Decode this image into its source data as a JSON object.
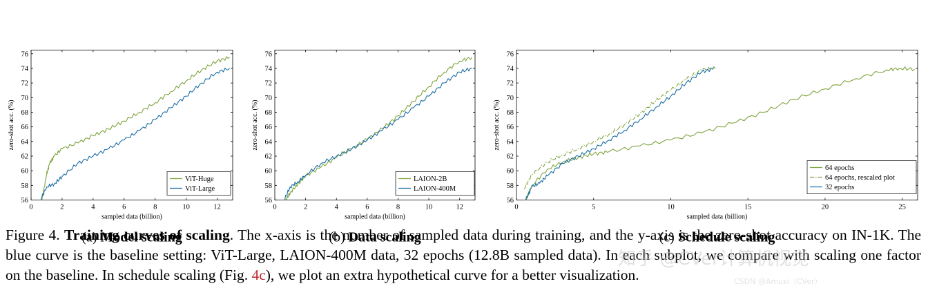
{
  "colors": {
    "green": "#7ea33e",
    "blue": "#1c6ea4",
    "caption_ref": "#c0282e"
  },
  "charts": [
    {
      "id": "a",
      "subcaption_prefix": "(a)",
      "subcaption_title": "Model scaling",
      "chart_data": {
        "type": "line",
        "xlabel": "sampled data (billion)",
        "ylabel": "zero-shot acc. (%)",
        "xlim": [
          0,
          13
        ],
        "ylim": [
          56,
          76.5
        ],
        "xticks": [
          0,
          2,
          4,
          6,
          8,
          10,
          12
        ],
        "yticks": [
          56,
          58,
          60,
          62,
          64,
          66,
          68,
          70,
          72,
          74,
          76
        ],
        "legend_position": "lower-right",
        "series": [
          {
            "name": "ViT-Huge",
            "color": "green",
            "style": "solid",
            "x": [
              0.7,
              1.0,
              1.2,
              1.5,
              2.0,
              3.0,
              4.0,
              5.0,
              6.0,
              7.0,
              8.0,
              9.0,
              10.0,
              11.0,
              12.0,
              12.8
            ],
            "y": [
              56.0,
              59.5,
              61.0,
              62.0,
              63.0,
              63.8,
              64.8,
              65.7,
              66.8,
              68.0,
              69.3,
              70.8,
              72.3,
              73.8,
              75.0,
              75.5
            ]
          },
          {
            "name": "ViT-Large",
            "color": "blue",
            "style": "solid",
            "x": [
              0.6,
              1.0,
              1.5,
              2.0,
              3.0,
              4.0,
              5.0,
              6.0,
              7.0,
              8.0,
              9.0,
              10.0,
              11.0,
              12.0,
              12.8
            ],
            "y": [
              56.0,
              57.8,
              58.2,
              59.2,
              61.0,
              62.0,
              63.0,
              64.2,
              65.5,
              67.0,
              68.6,
              70.2,
              72.0,
              73.5,
              74.0
            ]
          }
        ]
      }
    },
    {
      "id": "b",
      "subcaption_prefix": "(b)",
      "subcaption_title": "Data scaling",
      "chart_data": {
        "type": "line",
        "xlabel": "sampled data (billion)",
        "ylabel": "zero-shot acc. (%)",
        "xlim": [
          0,
          13
        ],
        "ylim": [
          56,
          76.5
        ],
        "xticks": [
          0,
          2,
          4,
          6,
          8,
          10,
          12
        ],
        "yticks": [
          56,
          58,
          60,
          62,
          64,
          66,
          68,
          70,
          72,
          74,
          76
        ],
        "legend_position": "lower-right",
        "series": [
          {
            "name": "LAION-2B",
            "color": "green",
            "style": "solid",
            "x": [
              0.7,
              1.0,
              1.5,
              2.0,
              3.0,
              4.0,
              5.0,
              6.0,
              7.0,
              8.0,
              9.0,
              10.0,
              11.0,
              12.0,
              12.8
            ],
            "y": [
              56.0,
              57.0,
              58.2,
              59.3,
              60.5,
              61.8,
              63.0,
              64.3,
              65.8,
              67.5,
              69.5,
              71.5,
              73.5,
              75.0,
              75.5
            ]
          },
          {
            "name": "LAION-400M",
            "color": "blue",
            "style": "solid",
            "x": [
              0.6,
              1.0,
              1.5,
              2.0,
              3.0,
              4.0,
              5.0,
              6.0,
              7.0,
              8.0,
              9.0,
              10.0,
              11.0,
              12.0,
              12.8
            ],
            "y": [
              56.0,
              57.8,
              58.5,
              59.4,
              61.0,
              62.0,
              63.0,
              64.2,
              65.6,
              67.0,
              68.6,
              70.2,
              72.0,
              73.5,
              74.0
            ]
          }
        ]
      }
    },
    {
      "id": "c",
      "subcaption_prefix": "(c)",
      "subcaption_title": "Schedule scaling",
      "chart_data": {
        "type": "line",
        "xlabel": "sampled data (billion)",
        "ylabel": "zero-shot acc. (%)",
        "xlim": [
          0,
          26
        ],
        "ylim": [
          56,
          76.5
        ],
        "xticks": [
          0,
          5,
          10,
          15,
          20,
          25
        ],
        "yticks": [
          56,
          58,
          60,
          62,
          64,
          66,
          68,
          70,
          72,
          74,
          76
        ],
        "legend_position": "lower-right",
        "series": [
          {
            "name": "64 epochs",
            "color": "green",
            "style": "solid",
            "x": [
              0.6,
              1.0,
              2.0,
              3.0,
              4.0,
              5.0,
              6.0,
              8.0,
              10.0,
              12.0,
              14.0,
              16.0,
              18.0,
              20.0,
              22.0,
              24.0,
              24.8,
              25.8
            ],
            "y": [
              56.0,
              58.0,
              60.2,
              61.2,
              61.8,
              62.3,
              62.6,
              63.4,
              64.2,
              65.2,
              66.5,
              68.0,
              69.8,
              71.2,
              72.6,
              73.8,
              74.0,
              73.9
            ]
          },
          {
            "name": "64 epochs, rescaled plot",
            "color": "green",
            "style": "dashdot",
            "x": [
              0.5,
              1.0,
              2.0,
              3.0,
              4.0,
              5.0,
              6.0,
              7.0,
              8.0,
              9.0,
              10.0,
              11.0,
              12.0,
              12.9
            ],
            "y": [
              57.5,
              59.5,
              61.2,
              62.2,
              63.0,
              64.0,
              65.0,
              66.3,
              67.8,
              69.5,
              71.0,
              72.5,
              73.8,
              74.0
            ]
          },
          {
            "name": "32 epochs",
            "color": "blue",
            "style": "solid",
            "x": [
              0.6,
              1.0,
              1.5,
              2.0,
              3.0,
              4.0,
              5.0,
              6.0,
              7.0,
              8.0,
              9.0,
              10.0,
              11.0,
              12.0,
              12.8
            ],
            "y": [
              56.0,
              57.8,
              58.3,
              59.3,
              61.0,
              62.0,
              63.0,
              64.2,
              65.5,
              67.0,
              68.6,
              70.2,
              72.0,
              73.5,
              74.0
            ]
          }
        ]
      }
    }
  ],
  "caption": {
    "figure_label": "Figure 4.",
    "bold_title": "Training curves of scaling",
    "text_1": ". The x-axis is the number of sampled data during training, and the y-axis is the zero-shot accuracy on IN-1K. The blue curve is the baseline setting: ViT-Large, LAION-400M data, 32 epochs (12.8B sampled data). In each subplot, we compare with scaling one factor on the baseline. In schedule scaling (Fig.",
    "ref": "4c",
    "text_2": "), we plot an extra hypothetical curve for a better visualization."
  },
  "watermark": {
    "line1": "知乎 @CVer计算机视觉",
    "line2": "CSDN @Amusi（CVer）"
  }
}
